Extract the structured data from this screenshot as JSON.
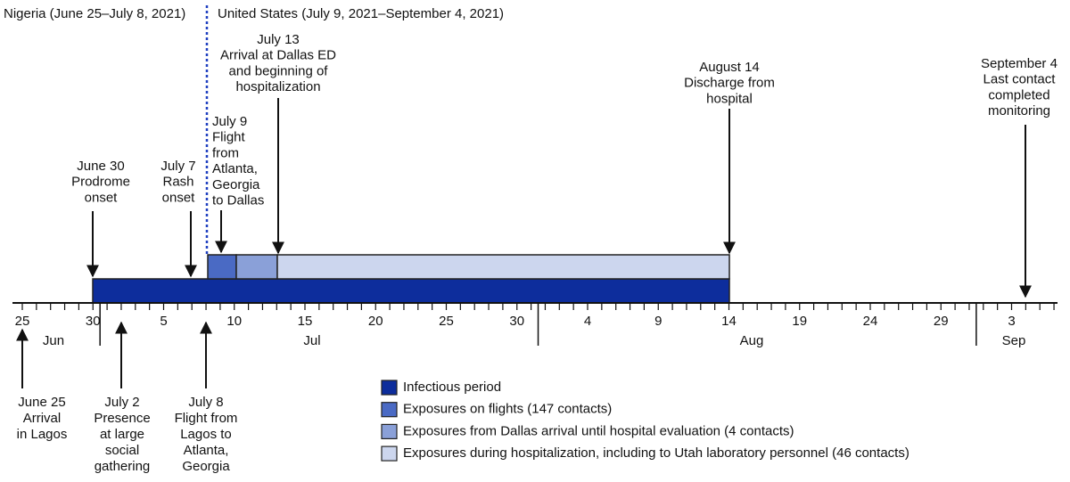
{
  "regions": [
    "Nigeria (June 25–July 8, 2021)",
    "United States (July 9, 2021–September 4, 2021)"
  ],
  "events_above": [
    {
      "lines": [
        "June 30",
        "Prodrome",
        "onset"
      ]
    },
    {
      "lines": [
        "July 7",
        "Rash",
        "onset"
      ]
    },
    {
      "lines": [
        "July 9",
        "Flight",
        "from",
        "Atlanta,",
        "Georgia",
        "to Dallas"
      ]
    },
    {
      "lines": [
        "July 13",
        "Arrival at Dallas ED",
        "and beginning of",
        "hospitalization"
      ]
    },
    {
      "lines": [
        "August 14",
        "Discharge from",
        "hospital"
      ]
    },
    {
      "lines": [
        "September 4",
        "Last contact",
        "completed",
        "monitoring"
      ]
    }
  ],
  "events_below": [
    {
      "lines": [
        "June 25",
        "Arrival",
        "in Lagos"
      ]
    },
    {
      "lines": [
        "July 2",
        "Presence",
        "at large",
        "social",
        "gathering"
      ]
    },
    {
      "lines": [
        "July 8",
        "Flight from",
        "Lagos to",
        "Atlanta,",
        "Georgia"
      ]
    }
  ],
  "axis": {
    "day_labels": [
      "25",
      "30",
      "5",
      "10",
      "15",
      "20",
      "25",
      "30",
      "4",
      "9",
      "14",
      "19",
      "24",
      "29",
      "3"
    ],
    "months": [
      "Jun",
      "Jul",
      "Aug",
      "Sep"
    ]
  },
  "legend": [
    "Infectious period",
    "Exposures on flights (147 contacts)",
    "Exposures from Dallas arrival until hospital evaluation (4 contacts)",
    "Exposures during hospitalization, including to Utah laboratory personnel (46 contacts)"
  ]
}
